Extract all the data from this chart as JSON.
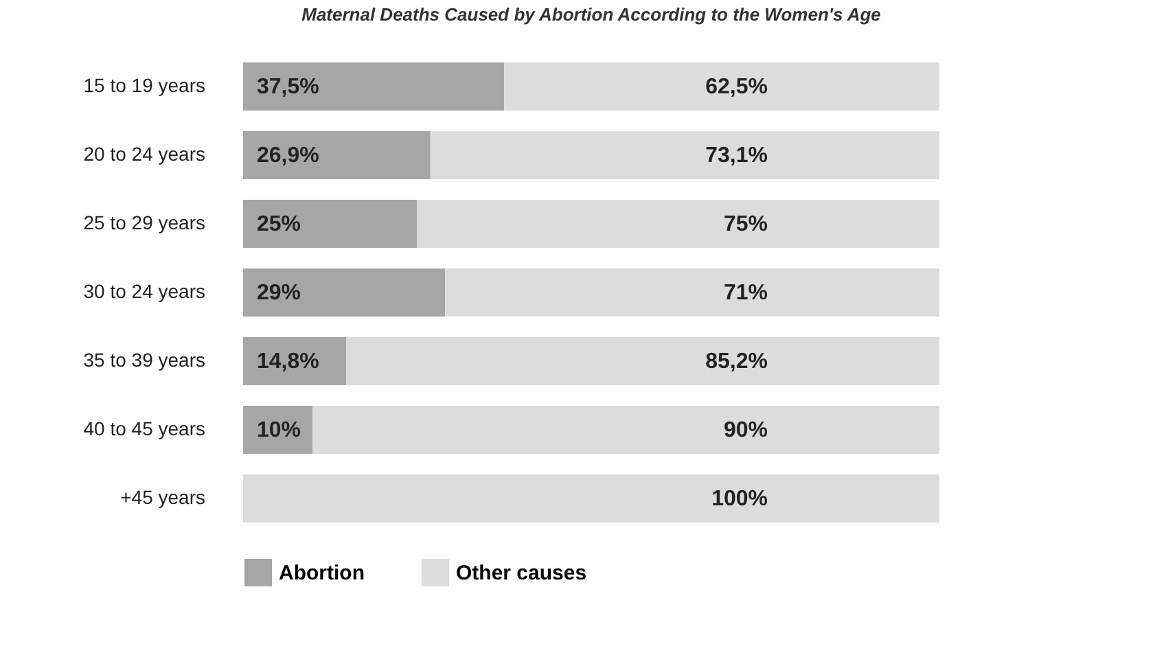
{
  "chart_data": {
    "type": "bar",
    "orientation": "horizontal",
    "stacked": true,
    "title": "Maternal Deaths Caused by Abortion According to the Women's Age",
    "categories": [
      "15 to 19 years",
      "20 to 24 years",
      "25 to 29 years",
      "30 to 24 years",
      "35 to 39 years",
      "40 to 45 years",
      "+45 years"
    ],
    "series": [
      {
        "name": "Abortion",
        "color": "#a6a6a6",
        "values": [
          37.5,
          26.9,
          25,
          29,
          14.8,
          10,
          0
        ],
        "value_labels": [
          "37,5%",
          "26,9%",
          "25%",
          "29%",
          "14,8%",
          "10%",
          null
        ]
      },
      {
        "name": "Other causes",
        "color": "#dcdcdc",
        "values": [
          62.5,
          73.1,
          75,
          71,
          85.2,
          90,
          100
        ],
        "value_labels": [
          "62,5%",
          "73,1%",
          "75%",
          "71%",
          "85,2%",
          "90%",
          "100%"
        ]
      }
    ],
    "xlim": [
      0,
      100
    ],
    "tick_labels": "y",
    "legend": "bottom"
  }
}
